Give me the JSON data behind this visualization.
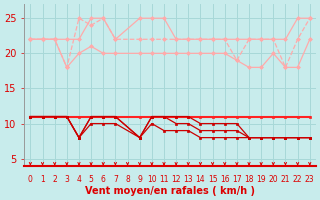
{
  "xlabel": "Vent moyen/en rafales ( km/h )",
  "background_color": "#c8ecec",
  "grid_color": "#a8d8d8",
  "x": [
    0,
    1,
    2,
    3,
    4,
    5,
    6,
    7,
    9,
    10,
    11,
    12,
    13,
    14,
    15,
    16,
    17,
    18,
    19,
    20,
    21,
    22,
    23
  ],
  "x_all": [
    0,
    1,
    2,
    3,
    4,
    5,
    6,
    7,
    8,
    9,
    10,
    11,
    12,
    13,
    14,
    15,
    16,
    17,
    18,
    19,
    20,
    21,
    22,
    23
  ],
  "ylim": [
    4,
    27
  ],
  "yticks": [
    5,
    10,
    15,
    20,
    25
  ],
  "series": [
    {
      "color": "#ffaaaa",
      "linestyle": "-",
      "marker": "D",
      "markersize": 2,
      "linewidth": 0.9,
      "y": [
        22,
        22,
        22,
        22,
        22,
        25,
        25,
        22,
        25,
        25,
        25,
        22,
        22,
        22,
        22,
        22,
        22,
        22,
        22,
        22,
        22,
        25,
        25
      ]
    },
    {
      "color": "#ffaaaa",
      "linestyle": "--",
      "marker": "D",
      "markersize": 2,
      "linewidth": 0.9,
      "y": [
        22,
        22,
        22,
        18,
        25,
        24,
        25,
        22,
        22,
        22,
        22,
        22,
        22,
        22,
        22,
        22,
        19,
        22,
        22,
        22,
        18,
        22,
        25
      ]
    },
    {
      "color": "#ffaaaa",
      "linestyle": "-",
      "marker": "D",
      "markersize": 2,
      "linewidth": 0.9,
      "y": [
        22,
        22,
        22,
        18,
        20,
        21,
        20,
        20,
        20,
        20,
        20,
        20,
        20,
        20,
        20,
        20,
        19,
        18,
        18,
        20,
        18,
        18,
        22
      ]
    },
    {
      "color": "#ff2222",
      "linestyle": "-",
      "marker": "s",
      "markersize": 2,
      "linewidth": 1.5,
      "y": [
        11,
        11,
        11,
        11,
        11,
        11,
        11,
        11,
        11,
        11,
        11,
        11,
        11,
        11,
        11,
        11,
        11,
        11,
        11,
        11,
        11,
        11,
        11
      ]
    },
    {
      "color": "#cc0000",
      "linestyle": "-",
      "marker": "s",
      "markersize": 2,
      "linewidth": 0.9,
      "y": [
        11,
        11,
        11,
        11,
        8,
        11,
        11,
        11,
        8,
        11,
        11,
        11,
        11,
        10,
        10,
        10,
        10,
        8,
        8,
        8,
        8,
        8,
        8
      ]
    },
    {
      "color": "#cc0000",
      "linestyle": "-",
      "marker": "s",
      "markersize": 2,
      "linewidth": 0.9,
      "y": [
        11,
        11,
        11,
        11,
        8,
        11,
        11,
        11,
        8,
        11,
        11,
        10,
        10,
        9,
        9,
        9,
        9,
        8,
        8,
        8,
        8,
        8,
        8
      ]
    },
    {
      "color": "#cc0000",
      "linestyle": "-",
      "marker": "s",
      "markersize": 2,
      "linewidth": 0.9,
      "y": [
        11,
        11,
        11,
        11,
        8,
        10,
        10,
        10,
        8,
        10,
        9,
        9,
        9,
        8,
        8,
        8,
        8,
        8,
        8,
        8,
        8,
        8,
        8
      ]
    }
  ],
  "axis_color": "#dd0000",
  "tick_color": "#dd0000",
  "label_color": "#dd0000"
}
